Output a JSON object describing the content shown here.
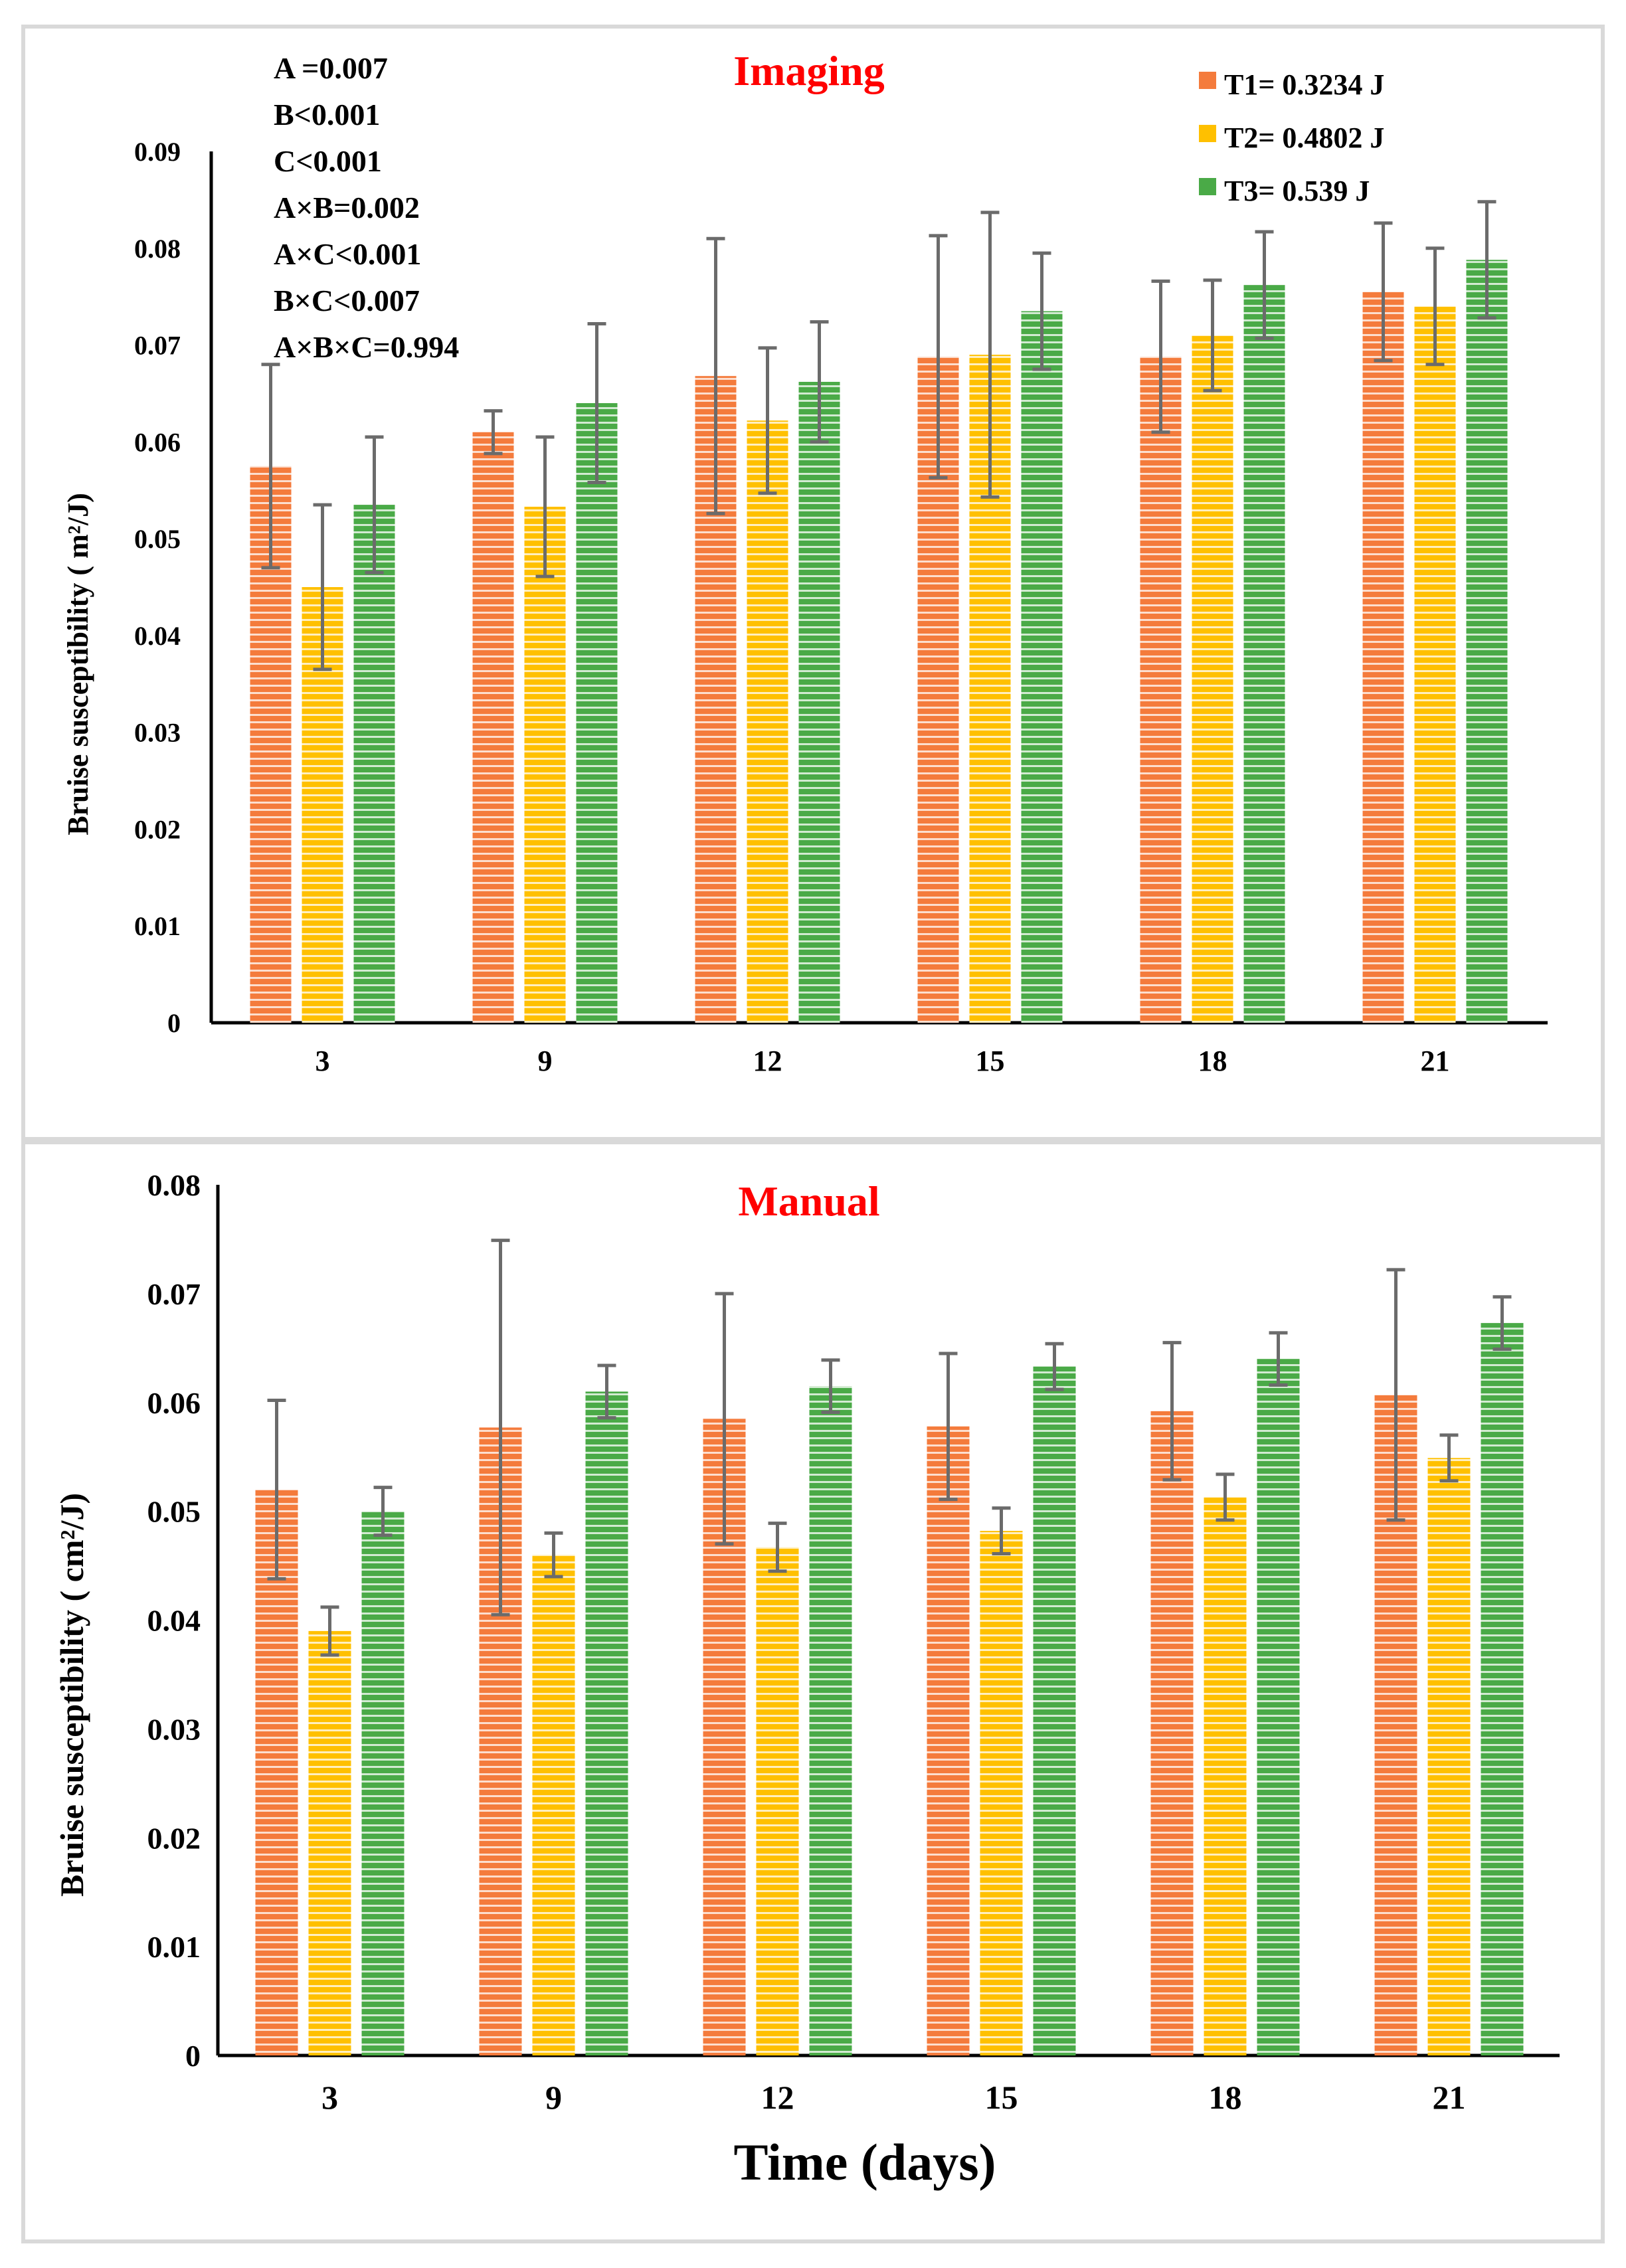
{
  "colors": {
    "T1": "#f47b3c",
    "T2": "#ffc000",
    "T3": "#4aaa47",
    "title": "#ff0000",
    "error": "#6b6b6b"
  },
  "legend": [
    {
      "key": "T1",
      "label": "T1= 0.3234 J"
    },
    {
      "key": "T2",
      "label": "T2= 0.4802 J"
    },
    {
      "key": "T3",
      "label": "T3= 0.539 J"
    }
  ],
  "stats": [
    "A =0.007",
    "B<0.001",
    "C<0.001",
    "A×B=0.002",
    "A×C<0.001",
    "B×C<0.007",
    "A×B×C=0.994"
  ],
  "xlabel": "Time (days)",
  "chart_data": [
    {
      "type": "bar",
      "title": "Imaging",
      "ylabel": "Bruise susceptibility ( m²/J)",
      "categories": [
        "3",
        "9",
        "12",
        "15",
        "18",
        "21"
      ],
      "ylim": [
        0,
        0.09
      ],
      "yticks": [
        "0",
        "0.01",
        "0.02",
        "0.03",
        "0.04",
        "0.05",
        "0.06",
        "0.07",
        "0.08",
        "0.09"
      ],
      "series": [
        {
          "name": "T1= 0.3234 J",
          "values": [
            0.0575,
            0.061,
            0.0668,
            0.0688,
            0.0688,
            0.0755
          ],
          "errors": [
            0.0105,
            0.0022,
            0.0142,
            0.0125,
            0.0078,
            0.0071
          ]
        },
        {
          "name": "T2= 0.4802 J",
          "values": [
            0.045,
            0.0533,
            0.0622,
            0.069,
            0.071,
            0.074
          ],
          "errors": [
            0.0085,
            0.0072,
            0.0075,
            0.0147,
            0.0057,
            0.006
          ]
        },
        {
          "name": "T3= 0.539 J",
          "values": [
            0.0535,
            0.064,
            0.0662,
            0.0735,
            0.0762,
            0.0788
          ],
          "errors": [
            0.007,
            0.0082,
            0.0062,
            0.006,
            0.0055,
            0.006
          ]
        }
      ]
    },
    {
      "type": "bar",
      "title": "Manual",
      "ylabel": "Bruise susceptibility ( cm²/J)",
      "categories": [
        "3",
        "9",
        "12",
        "15",
        "18",
        "21"
      ],
      "ylim": [
        0,
        0.08
      ],
      "yticks": [
        "0",
        "0.01",
        "0.02",
        "0.03",
        "0.04",
        "0.05",
        "0.06",
        "0.07",
        "0.08"
      ],
      "series": [
        {
          "name": "T1= 0.3234 J",
          "values": [
            0.052,
            0.0577,
            0.0585,
            0.0578,
            0.0592,
            0.0607
          ],
          "errors": [
            0.0082,
            0.0172,
            0.0115,
            0.0067,
            0.0063,
            0.0115
          ]
        },
        {
          "name": "T2= 0.4802 J",
          "values": [
            0.039,
            0.046,
            0.0467,
            0.0482,
            0.0513,
            0.0549
          ],
          "errors": [
            0.0022,
            0.002,
            0.0022,
            0.0021,
            0.0021,
            0.0021
          ]
        },
        {
          "name": "T3= 0.539 J",
          "values": [
            0.05,
            0.061,
            0.0615,
            0.0633,
            0.064,
            0.0673
          ],
          "errors": [
            0.0022,
            0.0024,
            0.0024,
            0.0021,
            0.0024,
            0.0024
          ]
        }
      ]
    }
  ]
}
